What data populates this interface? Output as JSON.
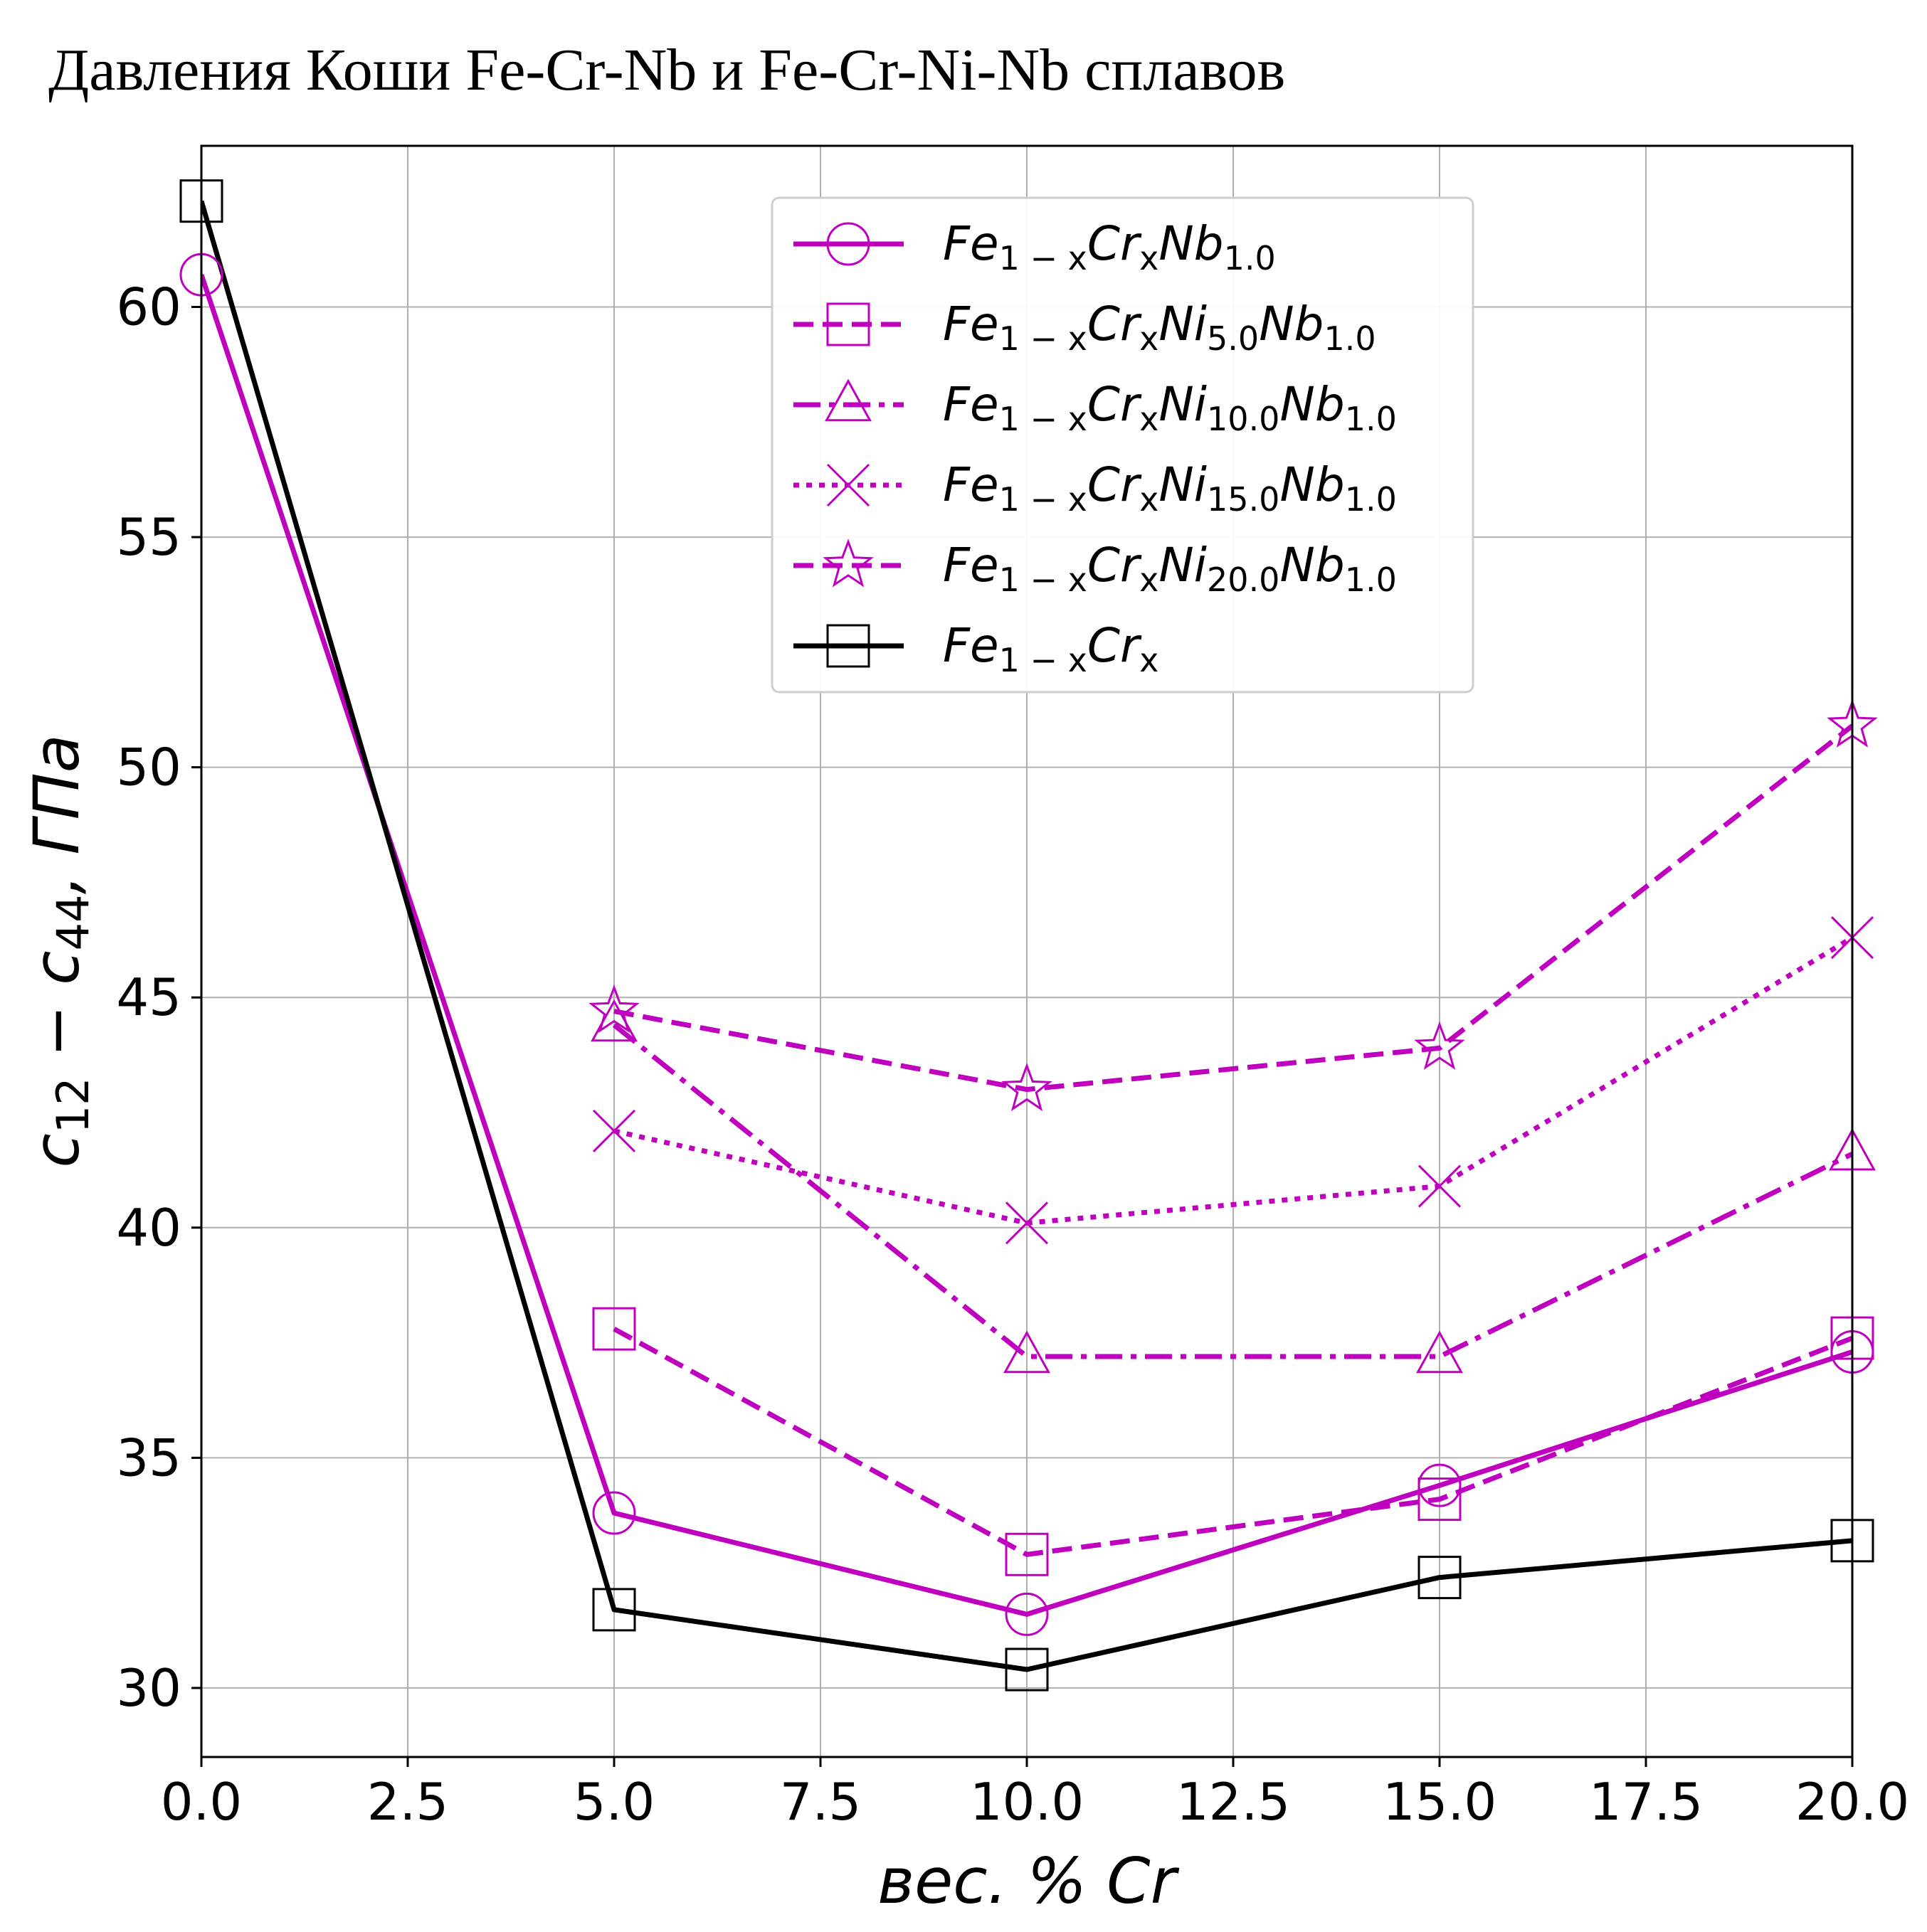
{
  "chart_data": {
    "type": "line",
    "title": "Давления Коши Fe-Cr-Nb и Fe-Cr-Ni-Nb сплавов",
    "xlabel": "вес. % Cr",
    "ylabel": "c12 − c44, ГПа",
    "xlim": [
      0,
      20
    ],
    "ylim": [
      28.5,
      63.5
    ],
    "x_ticks": [
      "0.0",
      "2.5",
      "5.0",
      "7.5",
      "10.0",
      "12.5",
      "15.0",
      "17.5",
      "20.0"
    ],
    "y_ticks": [
      "30",
      "35",
      "40",
      "45",
      "50",
      "55",
      "60"
    ],
    "grid": true,
    "legend_position": "top-right",
    "series": [
      {
        "name": "Fe1−xCrxNb1.0",
        "x": [
          0,
          5,
          10,
          15,
          20
        ],
        "y": [
          60.7,
          33.8,
          31.6,
          34.4,
          37.3
        ],
        "color": "#bf00bf",
        "linestyle": "solid",
        "marker": "circle"
      },
      {
        "name": "Fe1−xCrxNi5.0Nb1.0",
        "x": [
          5,
          10,
          15,
          20
        ],
        "y": [
          37.8,
          32.9,
          34.1,
          37.6
        ],
        "color": "#bf00bf",
        "linestyle": "dashed",
        "marker": "square"
      },
      {
        "name": "Fe1−xCrxNi10.0Nb1.0",
        "x": [
          5,
          10,
          15,
          20
        ],
        "y": [
          44.4,
          37.2,
          37.2,
          41.6
        ],
        "color": "#bf00bf",
        "linestyle": "dashdot",
        "marker": "triangle"
      },
      {
        "name": "Fe1−xCrxNi15.0Nb1.0",
        "x": [
          5,
          10,
          15,
          20
        ],
        "y": [
          42.1,
          40.1,
          40.9,
          46.3
        ],
        "color": "#bf00bf",
        "linestyle": "dotted",
        "marker": "x"
      },
      {
        "name": "Fe1−xCrxNi20.0Nb1.0",
        "x": [
          5,
          10,
          15,
          20
        ],
        "y": [
          44.7,
          43.0,
          43.9,
          50.9
        ],
        "color": "#bf00bf",
        "linestyle": "dashed",
        "marker": "star"
      },
      {
        "name": "Fe1−xCrx",
        "x": [
          0,
          5,
          10,
          15,
          20
        ],
        "y": [
          62.3,
          31.7,
          30.4,
          32.4,
          33.2
        ],
        "color": "#000000",
        "linestyle": "solid",
        "marker": "square"
      }
    ]
  }
}
